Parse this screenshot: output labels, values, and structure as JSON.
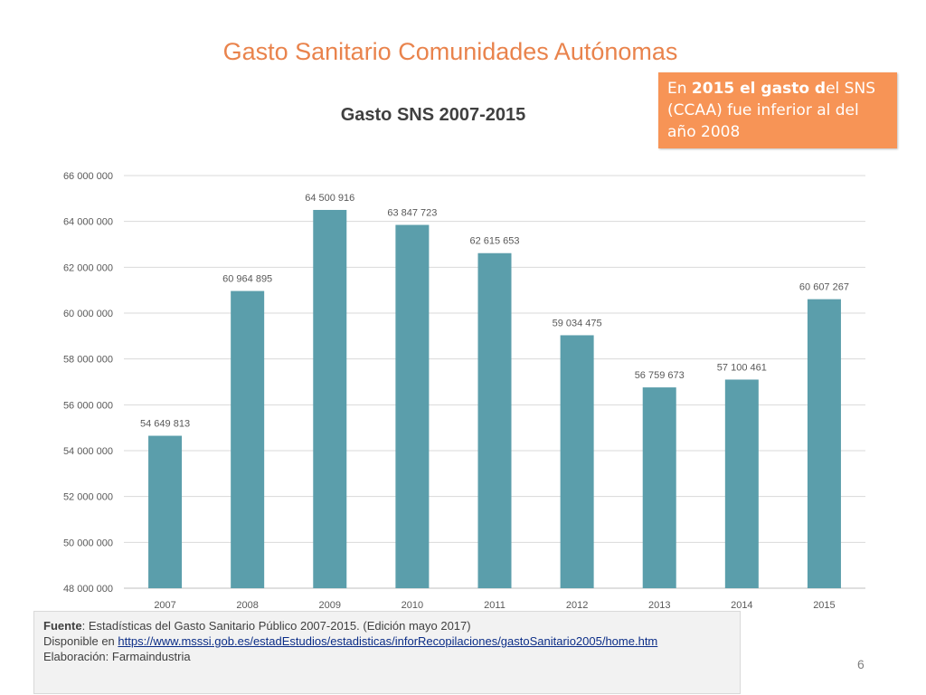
{
  "slide": {
    "title": "Gasto Sanitario Comunidades Autónomas",
    "page_number": "6"
  },
  "callout": {
    "part1": "En ",
    "part2": "2015 el gasto d",
    "part3": "el SNS (CCAA) fue inferior al del año 2008",
    "color": "#f79456"
  },
  "chart_data": {
    "type": "bar",
    "title": "Gasto SNS 2007-2015",
    "categories": [
      "2007",
      "2008",
      "2009",
      "2010",
      "2011",
      "2012",
      "2013",
      "2014",
      "2015"
    ],
    "values": [
      54649813,
      60964895,
      64500916,
      63847723,
      62615653,
      59034475,
      56759673,
      57100461,
      60607267
    ],
    "data_labels": [
      "54 649 813",
      "60 964 895",
      "64 500 916",
      "63 847 723",
      "62 615 653",
      "59 034 475",
      "56 759 673",
      "57 100 461",
      "60 607 267"
    ],
    "ylim": [
      48000000,
      66000000
    ],
    "yticks": [
      48000000,
      50000000,
      52000000,
      54000000,
      56000000,
      58000000,
      60000000,
      62000000,
      64000000,
      66000000
    ],
    "ytick_labels": [
      "48 000 000",
      "50 000 000",
      "52 000 000",
      "54 000 000",
      "56 000 000",
      "58 000 000",
      "60 000 000",
      "62 000 000",
      "64 000 000",
      "66 000 000"
    ],
    "xlabel": "",
    "ylabel": "",
    "grid": true,
    "legend": "none",
    "bar_color": "#5b9eab"
  },
  "source": {
    "label_fuente": "Fuente",
    "fuente_text": ": Estadísticas del Gasto Sanitario Público 2007-2015. (Edición mayo 2017)",
    "disponible_text": "Disponible en ",
    "link": "https://www.msssi.gob.es/estadEstudios/estadisticas/inforRecopilaciones/gastoSanitario2005/home.htm",
    "elaboracion_text": "Elaboración:  Farmaindustria"
  }
}
